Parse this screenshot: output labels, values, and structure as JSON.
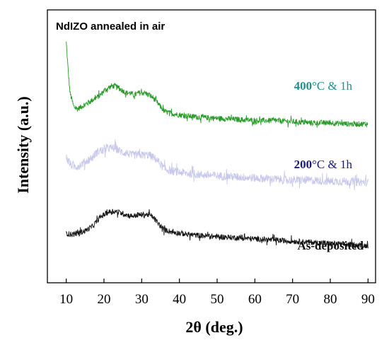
{
  "chart_data": {
    "type": "line",
    "title": "NdIZO annealed in air",
    "xlabel": "2θ (deg.)",
    "ylabel": "Intensity (a.u.)",
    "xlim": [
      5,
      92
    ],
    "xticks": [
      10,
      20,
      30,
      40,
      50,
      60,
      70,
      80,
      90
    ],
    "yticks": [],
    "grid": false,
    "legend": "none",
    "series": [
      {
        "label_bold": "400",
        "label_rest": "°C & 1h",
        "color": "#2a9a2a",
        "label_color": "#1f8f8f",
        "x": [
          10,
          10.5,
          11,
          12,
          13,
          14,
          15,
          16,
          17,
          18,
          19,
          20,
          21,
          22,
          23,
          24,
          25,
          26,
          27,
          28,
          29,
          30,
          31,
          32,
          33,
          34,
          35,
          36,
          38,
          40,
          42,
          45,
          50,
          55,
          60,
          65,
          70,
          75,
          80,
          85,
          90
        ],
        "y": [
          1.0,
          0.88,
          0.78,
          0.72,
          0.71,
          0.72,
          0.73,
          0.74,
          0.75,
          0.76,
          0.77,
          0.79,
          0.8,
          0.81,
          0.81,
          0.8,
          0.79,
          0.78,
          0.78,
          0.77,
          0.78,
          0.78,
          0.78,
          0.77,
          0.76,
          0.74,
          0.72,
          0.7,
          0.69,
          0.685,
          0.68,
          0.675,
          0.67,
          0.665,
          0.66,
          0.66,
          0.655,
          0.65,
          0.65,
          0.645,
          0.645
        ],
        "noise": 0.012
      },
      {
        "label_bold": "200",
        "label_rest": "°C & 1h",
        "color": "#c8c8ec",
        "label_color": "#1a1a7a",
        "x": [
          10,
          11,
          12,
          13,
          14,
          15,
          16,
          17,
          18,
          19,
          20,
          21,
          22,
          23,
          24,
          25,
          26,
          27,
          28,
          29,
          30,
          31,
          32,
          33,
          34,
          35,
          36,
          38,
          40,
          42,
          45,
          50,
          55,
          60,
          65,
          70,
          75,
          80,
          85,
          90
        ],
        "y": [
          0.5,
          0.47,
          0.46,
          0.46,
          0.47,
          0.48,
          0.49,
          0.5,
          0.52,
          0.53,
          0.53,
          0.54,
          0.54,
          0.54,
          0.53,
          0.52,
          0.52,
          0.51,
          0.51,
          0.51,
          0.51,
          0.51,
          0.51,
          0.5,
          0.49,
          0.47,
          0.45,
          0.44,
          0.435,
          0.43,
          0.425,
          0.42,
          0.415,
          0.41,
          0.405,
          0.4,
          0.4,
          0.395,
          0.395,
          0.39
        ],
        "noise": 0.018
      },
      {
        "label_bold": "As-deposited",
        "label_rest": "",
        "color": "#111111",
        "label_color": "#111111",
        "x": [
          10,
          11,
          12,
          13,
          14,
          15,
          16,
          17,
          18,
          19,
          20,
          21,
          22,
          23,
          24,
          25,
          26,
          27,
          28,
          29,
          30,
          31,
          32,
          33,
          34,
          35,
          36,
          38,
          40,
          42,
          45,
          50,
          55,
          60,
          65,
          70,
          75,
          80,
          85,
          90
        ],
        "y": [
          0.17,
          0.165,
          0.165,
          0.17,
          0.175,
          0.18,
          0.19,
          0.2,
          0.22,
          0.24,
          0.25,
          0.26,
          0.265,
          0.265,
          0.26,
          0.255,
          0.25,
          0.245,
          0.245,
          0.25,
          0.25,
          0.25,
          0.25,
          0.24,
          0.22,
          0.2,
          0.185,
          0.175,
          0.17,
          0.165,
          0.16,
          0.155,
          0.15,
          0.145,
          0.14,
          0.135,
          0.13,
          0.125,
          0.12,
          0.115
        ],
        "noise": 0.012
      }
    ]
  }
}
